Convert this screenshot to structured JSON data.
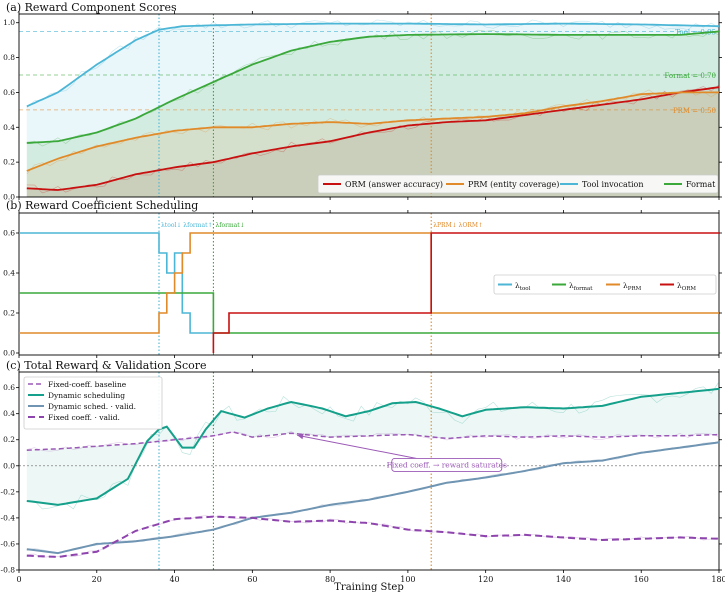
{
  "colors": {
    "orm": "#c81010",
    "prm": "#e08a2a",
    "tool": "#4cb6d6",
    "format": "#3aa83a",
    "dynamic": "#14a08a",
    "fixed": "#9b59b6",
    "dyn_valid": "#6f95b3",
    "fix_valid": "#8e44ad",
    "annot_purple": "#9b59b6"
  },
  "chart_data": [
    {
      "type": "line",
      "title": "(a)  Reward Component Scores",
      "xlim": [
        0,
        180
      ],
      "ylim": [
        0,
        1.05
      ],
      "yticks": [
        0.0,
        0.2,
        0.4,
        0.6,
        0.8,
        1.0
      ],
      "ytick_labels": [
        "0.0",
        "0.2",
        "0.4",
        "0.6",
        "0.8",
        "1.0"
      ],
      "vlines": [
        36,
        50,
        106
      ],
      "thresholds": [
        {
          "y": 0.95,
          "label": "Tool = 0.95",
          "series": "tool"
        },
        {
          "y": 0.7,
          "label": "Format = 0.70",
          "series": "format"
        },
        {
          "y": 0.5,
          "label": "PRM = 0.50",
          "series": "prm"
        }
      ],
      "legend_position": "lower-right",
      "series": [
        {
          "name": "ORM (answer accuracy)",
          "key": "orm",
          "points": [
            [
              2,
              0.05
            ],
            [
              10,
              0.04
            ],
            [
              20,
              0.07
            ],
            [
              30,
              0.13
            ],
            [
              40,
              0.17
            ],
            [
              50,
              0.2
            ],
            [
              60,
              0.25
            ],
            [
              70,
              0.29
            ],
            [
              80,
              0.32
            ],
            [
              90,
              0.37
            ],
            [
              100,
              0.41
            ],
            [
              110,
              0.43
            ],
            [
              120,
              0.44
            ],
            [
              130,
              0.47
            ],
            [
              140,
              0.5
            ],
            [
              150,
              0.53
            ],
            [
              160,
              0.56
            ],
            [
              170,
              0.6
            ],
            [
              180,
              0.63
            ]
          ]
        },
        {
          "name": "PRM (entity coverage)",
          "key": "prm",
          "points": [
            [
              2,
              0.15
            ],
            [
              10,
              0.22
            ],
            [
              20,
              0.29
            ],
            [
              30,
              0.34
            ],
            [
              40,
              0.38
            ],
            [
              50,
              0.4
            ],
            [
              60,
              0.4
            ],
            [
              70,
              0.42
            ],
            [
              80,
              0.43
            ],
            [
              90,
              0.42
            ],
            [
              100,
              0.44
            ],
            [
              110,
              0.45
            ],
            [
              120,
              0.46
            ],
            [
              130,
              0.48
            ],
            [
              140,
              0.52
            ],
            [
              150,
              0.55
            ],
            [
              160,
              0.59
            ],
            [
              170,
              0.6
            ],
            [
              180,
              0.6
            ]
          ]
        },
        {
          "name": "Tool invocation",
          "key": "tool",
          "points": [
            [
              2,
              0.52
            ],
            [
              10,
              0.6
            ],
            [
              20,
              0.76
            ],
            [
              30,
              0.9
            ],
            [
              36,
              0.96
            ],
            [
              42,
              0.98
            ],
            [
              50,
              0.985
            ],
            [
              60,
              0.99
            ],
            [
              80,
              0.995
            ],
            [
              100,
              0.995
            ],
            [
              120,
              0.99
            ],
            [
              140,
              0.995
            ],
            [
              160,
              0.99
            ],
            [
              180,
              0.98
            ]
          ]
        },
        {
          "name": "Format",
          "key": "format",
          "points": [
            [
              2,
              0.31
            ],
            [
              10,
              0.32
            ],
            [
              20,
              0.37
            ],
            [
              30,
              0.45
            ],
            [
              40,
              0.56
            ],
            [
              50,
              0.66
            ],
            [
              60,
              0.76
            ],
            [
              70,
              0.84
            ],
            [
              80,
              0.89
            ],
            [
              90,
              0.92
            ],
            [
              100,
              0.93
            ],
            [
              120,
              0.935
            ],
            [
              140,
              0.93
            ],
            [
              160,
              0.93
            ],
            [
              170,
              0.93
            ],
            [
              180,
              0.95
            ]
          ]
        }
      ]
    },
    {
      "type": "line",
      "title": "(b)  Reward Coefficient Scheduling",
      "xlim": [
        0,
        180
      ],
      "ylim": [
        -0.01,
        0.7
      ],
      "yticks": [
        0.0,
        0.2,
        0.4,
        0.6
      ],
      "ytick_labels": [
        "0.0",
        "0.2",
        "0.4",
        "0.6"
      ],
      "vlines": [
        36,
        50,
        106
      ],
      "annotations": [
        {
          "x": 36,
          "label": "λtool↓  λformat↑",
          "series": "tool"
        },
        {
          "x": 50,
          "label": "λformat↓",
          "series": "format"
        },
        {
          "x": 106,
          "label": "λPRM↓  λORM↑",
          "series": "prm"
        }
      ],
      "legend_position": "center-right",
      "series": [
        {
          "name": "λtool",
          "sub": "tool",
          "key": "tool",
          "steps": [
            [
              0,
              0.6
            ],
            [
              36,
              0.6
            ],
            [
              36,
              0.5
            ],
            [
              38,
              0.5
            ],
            [
              38,
              0.4
            ],
            [
              40,
              0.4
            ],
            [
              40,
              0.5
            ],
            [
              42,
              0.5
            ],
            [
              42,
              0.2
            ],
            [
              44,
              0.2
            ],
            [
              44,
              0.1
            ],
            [
              50,
              0.1
            ]
          ]
        },
        {
          "name": "λformat",
          "sub": "format",
          "key": "format",
          "steps": [
            [
              0,
              0.3
            ],
            [
              50,
              0.3
            ],
            [
              50,
              0.1
            ],
            [
              180,
              0.1
            ]
          ]
        },
        {
          "name": "λPRM",
          "sub": "PRM",
          "key": "prm",
          "steps": [
            [
              0,
              0.1
            ],
            [
              36,
              0.1
            ],
            [
              36,
              0.2
            ],
            [
              38,
              0.2
            ],
            [
              38,
              0.3
            ],
            [
              40,
              0.3
            ],
            [
              40,
              0.4
            ],
            [
              42,
              0.4
            ],
            [
              42,
              0.5
            ],
            [
              44,
              0.5
            ],
            [
              44,
              0.6
            ],
            [
              106,
              0.6
            ],
            [
              106,
              0.2
            ],
            [
              180,
              0.2
            ]
          ]
        },
        {
          "name": "λORM",
          "sub": "ORM",
          "key": "orm",
          "steps": [
            [
              50,
              0.0
            ],
            [
              50,
              0.1
            ],
            [
              54,
              0.1
            ],
            [
              54,
              0.2
            ],
            [
              106,
              0.2
            ],
            [
              106,
              0.6
            ],
            [
              180,
              0.6
            ]
          ]
        }
      ]
    },
    {
      "type": "line",
      "title": "(c)  Total Reward & Validation Score",
      "xlabel": "Training Step",
      "xlim": [
        0,
        180
      ],
      "ylim": [
        -0.8,
        0.72
      ],
      "xticks": [
        0,
        20,
        40,
        60,
        80,
        100,
        120,
        140,
        160,
        180
      ],
      "yticks": [
        -0.8,
        -0.6,
        -0.4,
        -0.2,
        0.0,
        0.2,
        0.4,
        0.6
      ],
      "ytick_labels": [
        "-0.8",
        "-0.6",
        "-0.4",
        "-0.2",
        "0.0",
        "0.2",
        "0.4",
        "0.6"
      ],
      "vlines": [
        36,
        50,
        106
      ],
      "annotation": {
        "text": "Fixed coeff. → reward saturates",
        "point": [
          70,
          0.25
        ],
        "text_at": [
          110,
          0.01
        ]
      },
      "legend_position": "upper-left",
      "series": [
        {
          "name": "Fixed-coeff. baseline",
          "key": "fixed",
          "dash": "5,3",
          "points": [
            [
              2,
              0.12
            ],
            [
              10,
              0.13
            ],
            [
              20,
              0.15
            ],
            [
              30,
              0.17
            ],
            [
              40,
              0.2
            ],
            [
              50,
              0.23
            ],
            [
              55,
              0.26
            ],
            [
              60,
              0.22
            ],
            [
              70,
              0.25
            ],
            [
              80,
              0.22
            ],
            [
              90,
              0.23
            ],
            [
              100,
              0.24
            ],
            [
              110,
              0.21
            ],
            [
              120,
              0.23
            ],
            [
              130,
              0.22
            ],
            [
              140,
              0.23
            ],
            [
              150,
              0.22
            ],
            [
              160,
              0.23
            ],
            [
              170,
              0.23
            ],
            [
              180,
              0.24
            ]
          ]
        },
        {
          "name": "Dynamic scheduling",
          "key": "dynamic",
          "points": [
            [
              2,
              -0.27
            ],
            [
              10,
              -0.3
            ],
            [
              20,
              -0.25
            ],
            [
              28,
              -0.1
            ],
            [
              33,
              0.19
            ],
            [
              36,
              0.28
            ],
            [
              38,
              0.3
            ],
            [
              40,
              0.22
            ],
            [
              42,
              0.14
            ],
            [
              45,
              0.14
            ],
            [
              48,
              0.28
            ],
            [
              52,
              0.42
            ],
            [
              58,
              0.37
            ],
            [
              64,
              0.44
            ],
            [
              70,
              0.49
            ],
            [
              78,
              0.44
            ],
            [
              84,
              0.38
            ],
            [
              90,
              0.42
            ],
            [
              96,
              0.48
            ],
            [
              102,
              0.49
            ],
            [
              108,
              0.44
            ],
            [
              114,
              0.38
            ],
            [
              120,
              0.43
            ],
            [
              130,
              0.45
            ],
            [
              140,
              0.44
            ],
            [
              150,
              0.46
            ],
            [
              160,
              0.53
            ],
            [
              170,
              0.56
            ],
            [
              180,
              0.59
            ]
          ]
        },
        {
          "name": "Dynamic sched. · valid.",
          "key": "dyn_valid",
          "points": [
            [
              2,
              -0.64
            ],
            [
              10,
              -0.67
            ],
            [
              20,
              -0.6
            ],
            [
              30,
              -0.58
            ],
            [
              40,
              -0.54
            ],
            [
              50,
              -0.49
            ],
            [
              60,
              -0.4
            ],
            [
              70,
              -0.36
            ],
            [
              80,
              -0.3
            ],
            [
              90,
              -0.26
            ],
            [
              100,
              -0.2
            ],
            [
              110,
              -0.13
            ],
            [
              120,
              -0.09
            ],
            [
              130,
              -0.04
            ],
            [
              140,
              0.02
            ],
            [
              150,
              0.04
            ],
            [
              160,
              0.1
            ],
            [
              170,
              0.14
            ],
            [
              180,
              0.18
            ]
          ]
        },
        {
          "name": "Fixed coeff. · valid.",
          "key": "fix_valid",
          "dash": "7,4",
          "points": [
            [
              2,
              -0.69
            ],
            [
              10,
              -0.7
            ],
            [
              20,
              -0.66
            ],
            [
              30,
              -0.5
            ],
            [
              40,
              -0.41
            ],
            [
              50,
              -0.39
            ],
            [
              60,
              -0.4
            ],
            [
              70,
              -0.43
            ],
            [
              80,
              -0.42
            ],
            [
              90,
              -0.44
            ],
            [
              100,
              -0.49
            ],
            [
              110,
              -0.51
            ],
            [
              120,
              -0.54
            ],
            [
              130,
              -0.53
            ],
            [
              140,
              -0.55
            ],
            [
              150,
              -0.57
            ],
            [
              160,
              -0.56
            ],
            [
              170,
              -0.55
            ],
            [
              180,
              -0.56
            ]
          ]
        }
      ]
    }
  ]
}
